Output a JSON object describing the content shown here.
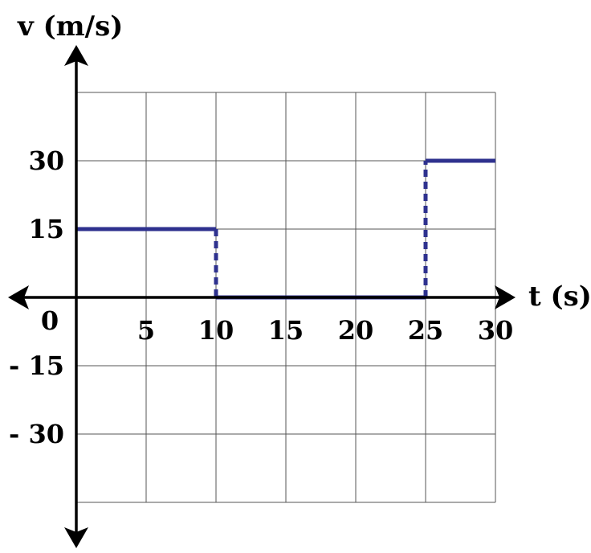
{
  "chart_data": {
    "type": "line",
    "ylabel": "v (m/s)",
    "xlabel": "t (s)",
    "origin_label": "0",
    "x_ticks": [
      5,
      10,
      15,
      20,
      25,
      30
    ],
    "x_tick_labels": [
      "5",
      "10",
      "15",
      "20",
      "25",
      "30"
    ],
    "y_ticks": [
      30,
      15,
      -15,
      -30
    ],
    "y_tick_labels": [
      "30",
      "15",
      "- 15",
      "- 30"
    ],
    "xlim": [
      0,
      30
    ],
    "ylim": [
      -45,
      45
    ],
    "grid": true,
    "series": [
      {
        "segments": [
          {
            "style": "solid",
            "x": [
              0,
              10
            ],
            "y": [
              15,
              15
            ]
          },
          {
            "style": "dashed",
            "x": [
              10,
              10
            ],
            "y": [
              15,
              0
            ]
          },
          {
            "style": "solid",
            "x": [
              10,
              25
            ],
            "y": [
              0,
              0
            ]
          },
          {
            "style": "dashed",
            "x": [
              25,
              25
            ],
            "y": [
              0,
              30
            ]
          },
          {
            "style": "solid",
            "x": [
              25,
              30
            ],
            "y": [
              30,
              30
            ]
          }
        ],
        "color": "#2e318e"
      }
    ],
    "colors": {
      "series": "#2e318e",
      "grid": "#555555",
      "axes": "#000000"
    }
  }
}
